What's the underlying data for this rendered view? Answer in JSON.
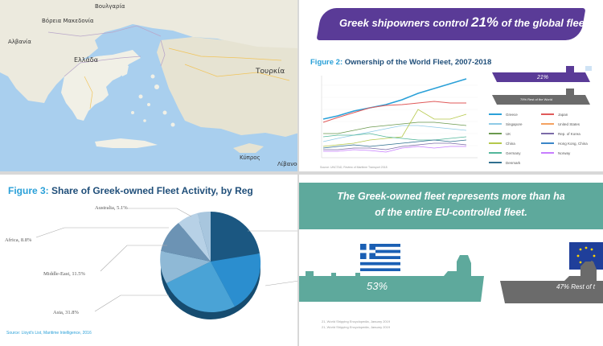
{
  "map": {
    "labels": {
      "bulgaria": "Βουλγαρία",
      "north_macedonia": "Βόρεια Μακεδονία",
      "albania": "Αλβανία",
      "greece": "Ελλάδα",
      "turkey": "Τουρκία",
      "cyprus": "Κύπρος",
      "lebanon": "Λίβανος"
    },
    "colors": {
      "sea": "#a9cfee",
      "land": "#e8e6d8",
      "greek_land": "#f0efe6"
    }
  },
  "fleet": {
    "banner": {
      "before": "Greek shipowners control ",
      "highlight": "21%",
      "after": " of the global fleet."
    },
    "figure_label": "Figure 2:",
    "figure_title": " Ownership of the World Fleet, 2007-2018",
    "ship_pct": "21%",
    "ship_caption": "79% Rest of the World",
    "legend": [
      {
        "name": "Greece",
        "color": "#2aa0d8"
      },
      {
        "name": "Japan",
        "color": "#e05a5a"
      },
      {
        "name": "Singapore",
        "color": "#8ecae6"
      },
      {
        "name": "United States",
        "color": "#f4a261"
      },
      {
        "name": "UK",
        "color": "#6a994e"
      },
      {
        "name": "Rep. of Korea",
        "color": "#7b6ba8"
      },
      {
        "name": "China",
        "color": "#b5c84a"
      },
      {
        "name": "Hong Kong, China",
        "color": "#3a86c8"
      },
      {
        "name": "Germany",
        "color": "#52b69a"
      },
      {
        "name": "Norway",
        "color": "#c77dff"
      },
      {
        "name": "Denmark",
        "color": "#2f6f8f"
      }
    ],
    "source": "Source: UNCTAD, Review of Maritime Transport 2018"
  },
  "share": {
    "figure_label": "Figure 3:",
    "figure_title": " Share of Greek-owned Fleet Activity, by Reg",
    "source": "Source: Lloyd's List, Maritime Intelligence, 2016",
    "slices": [
      {
        "label": "Australia, 5.1%",
        "value": 5.1
      },
      {
        "label": "Africa, 8.8%",
        "value": 8.8
      },
      {
        "label": "Middle-East, 11.5%",
        "value": 11.5
      },
      {
        "label": "Asia, 31.8%",
        "value": 31.8
      }
    ]
  },
  "eu": {
    "line1": "The Greek-owned fleet represents more than ha",
    "line2": "of the entire EU-controlled fleet.",
    "greek_pct": "53%",
    "rest_pct": "47% Rest of t",
    "footnote1": "21, World Shipping Encyclopedia, January 2019",
    "footnote2": "21, World Shipping Encyclopedia, January 2019",
    "colors": {
      "teal": "#5ea99c",
      "ship_greek": "#5ea99c",
      "ship_rest": "#6b6b6b",
      "eu_flag": "#1f3f9a"
    }
  }
}
